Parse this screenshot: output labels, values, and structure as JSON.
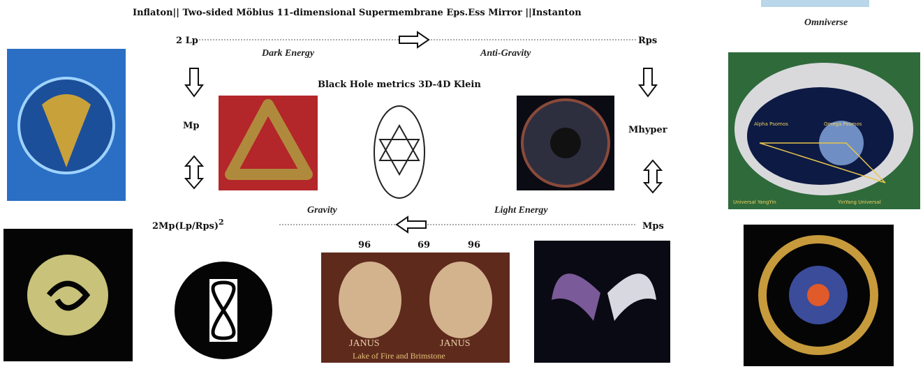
{
  "header": {
    "title": "Inflaton||    Two-sided Möbius 11-dimensional Supermembrane Eps.Ess Mirror  ||Instanton",
    "corner_label": "Omniverse"
  },
  "top_row": {
    "left": "2 Lp",
    "right": "Rps",
    "left_caption": "Dark Energy",
    "right_caption": "Anti-Gravity"
  },
  "middle": {
    "heading": "Black Hole metrics  3D-4D Klein",
    "left": "Mp",
    "right": "Mhyper"
  },
  "bottom_row": {
    "left": "2Mp(Lp/Rps)",
    "left_exponent": "2",
    "right": "Mps",
    "left_caption": "Gravity",
    "right_caption": "Light Energy"
  },
  "janus": {
    "numbers": [
      "96",
      "69",
      "96"
    ],
    "names": [
      "JANUS",
      "JANUS"
    ],
    "caption": "Lake of Fire and Brimstone"
  },
  "egg": {
    "labels": [
      "Alpha Psomos",
      "Omega Psomos",
      "Universal YangYin",
      "YinYang Universal"
    ]
  }
}
